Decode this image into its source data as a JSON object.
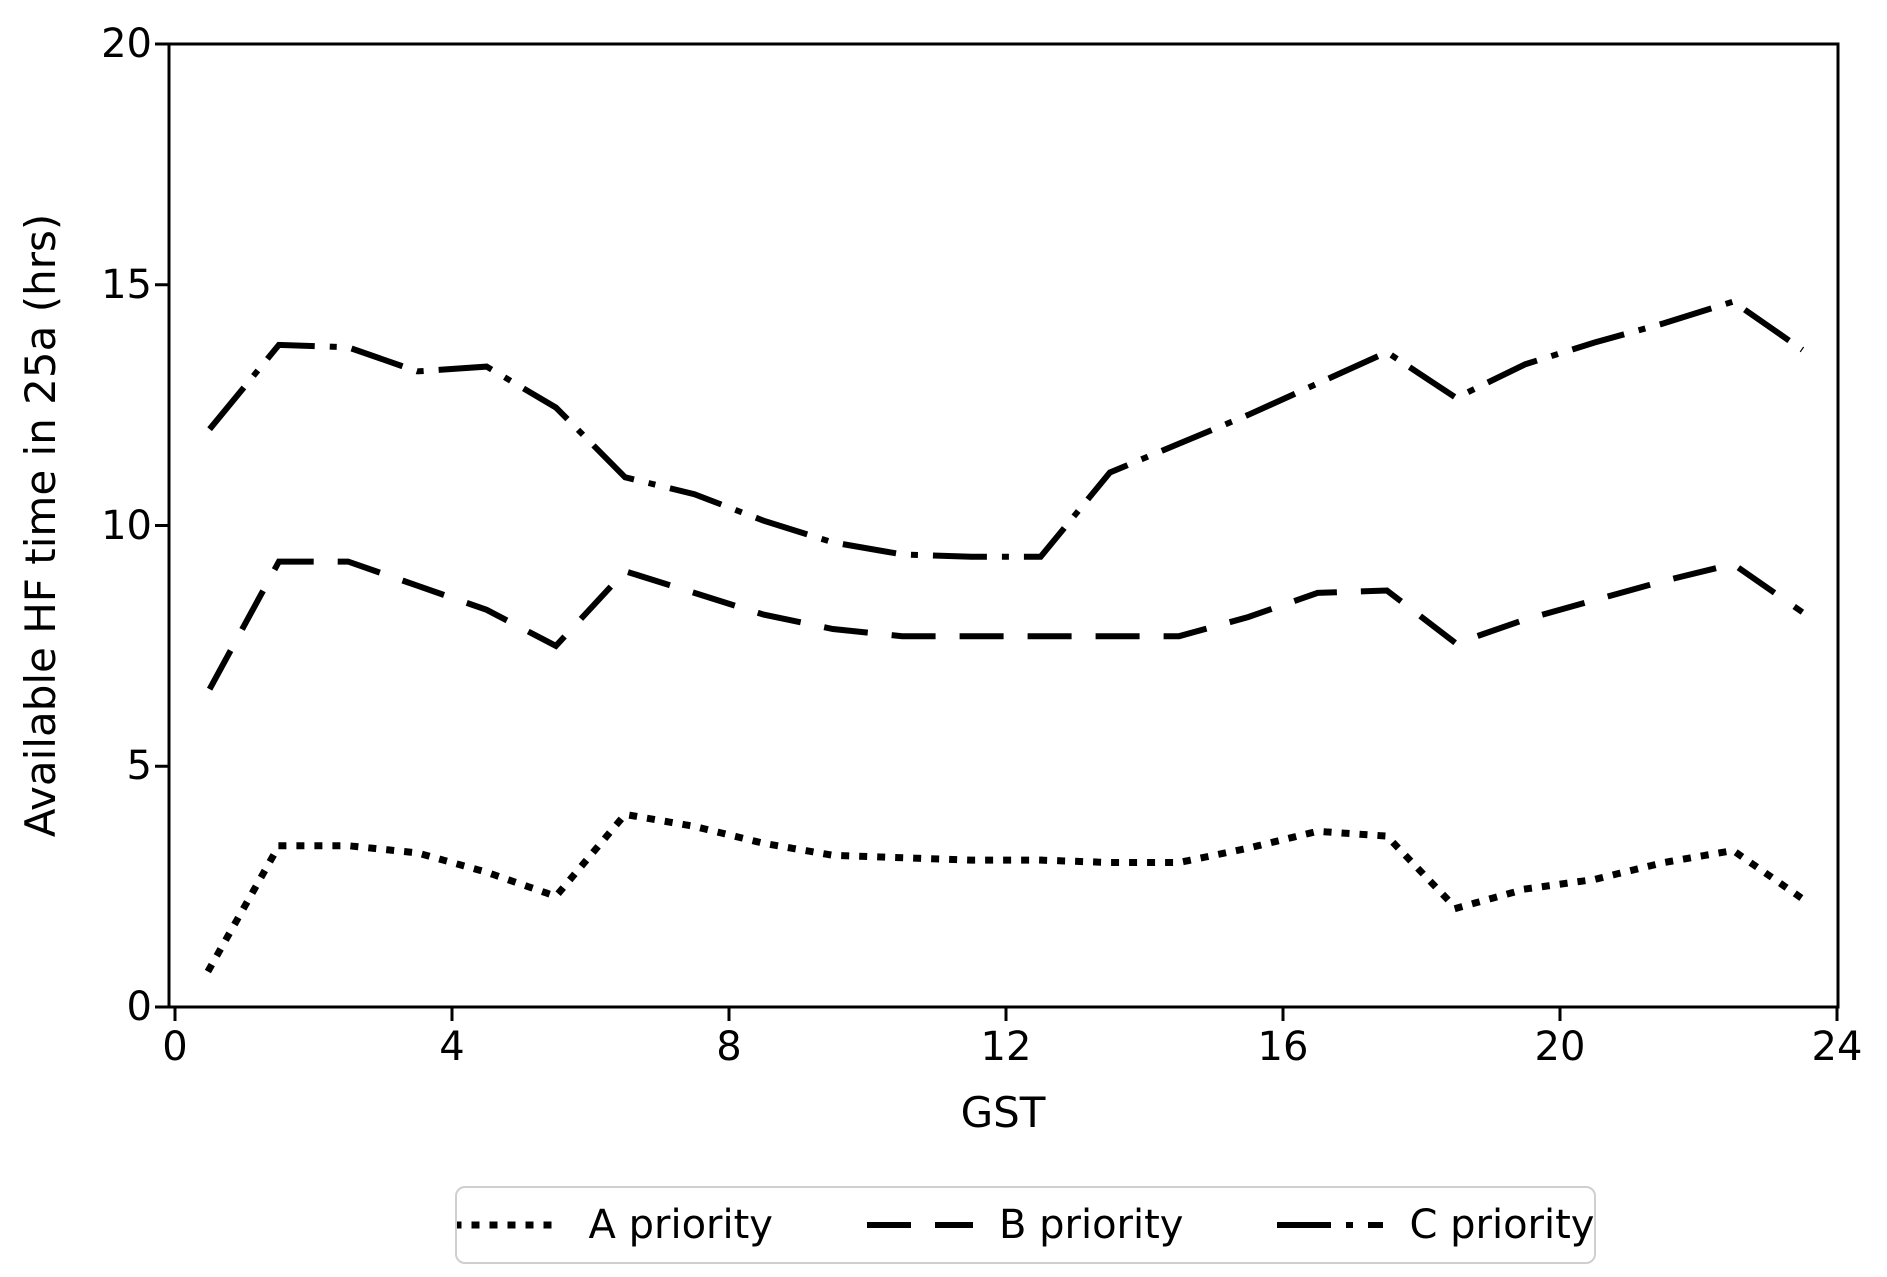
{
  "chart_data": {
    "type": "line",
    "title": "",
    "xlabel": "GST",
    "ylabel": "Available HF time in 25a (hrs)",
    "xlim": [
      0,
      24
    ],
    "ylim": [
      0,
      20
    ],
    "x_ticks": [
      0,
      4,
      8,
      12,
      16,
      20,
      24
    ],
    "y_ticks": [
      0,
      5,
      10,
      15,
      20
    ],
    "grid": false,
    "legend_position": "below-chart-center",
    "line_color": "#000000",
    "x": [
      0.5,
      1.5,
      2.5,
      3.5,
      4.5,
      5.5,
      6.5,
      7.5,
      8.5,
      9.5,
      10.5,
      11.5,
      12.5,
      13.5,
      14.5,
      15.5,
      16.5,
      17.5,
      18.5,
      19.5,
      20.5,
      21.5,
      22.5,
      23.5
    ],
    "series": [
      {
        "name": "A priority",
        "linestyle": "dotted",
        "color": "#000000",
        "values": [
          0.8,
          3.35,
          3.35,
          3.2,
          2.8,
          2.3,
          4.0,
          3.75,
          3.4,
          3.15,
          3.1,
          3.05,
          3.05,
          3.0,
          3.0,
          3.3,
          3.65,
          3.55,
          2.05,
          2.45,
          2.65,
          3.0,
          3.25,
          2.25
        ]
      },
      {
        "name": "B priority",
        "linestyle": "dashed",
        "color": "#000000",
        "values": [
          6.6,
          9.25,
          9.25,
          8.75,
          8.25,
          7.5,
          9.05,
          8.6,
          8.15,
          7.85,
          7.7,
          7.7,
          7.7,
          7.7,
          7.7,
          8.1,
          8.6,
          8.65,
          7.55,
          8.05,
          8.45,
          8.85,
          9.2,
          8.2
        ]
      },
      {
        "name": "C priority",
        "linestyle": "dashdot",
        "color": "#000000",
        "values": [
          12.0,
          13.75,
          13.7,
          13.2,
          13.3,
          12.45,
          11.0,
          10.65,
          10.1,
          9.65,
          9.4,
          9.35,
          9.35,
          11.1,
          11.7,
          12.3,
          12.95,
          13.6,
          12.65,
          13.35,
          13.8,
          14.2,
          14.65,
          13.65
        ]
      }
    ]
  }
}
